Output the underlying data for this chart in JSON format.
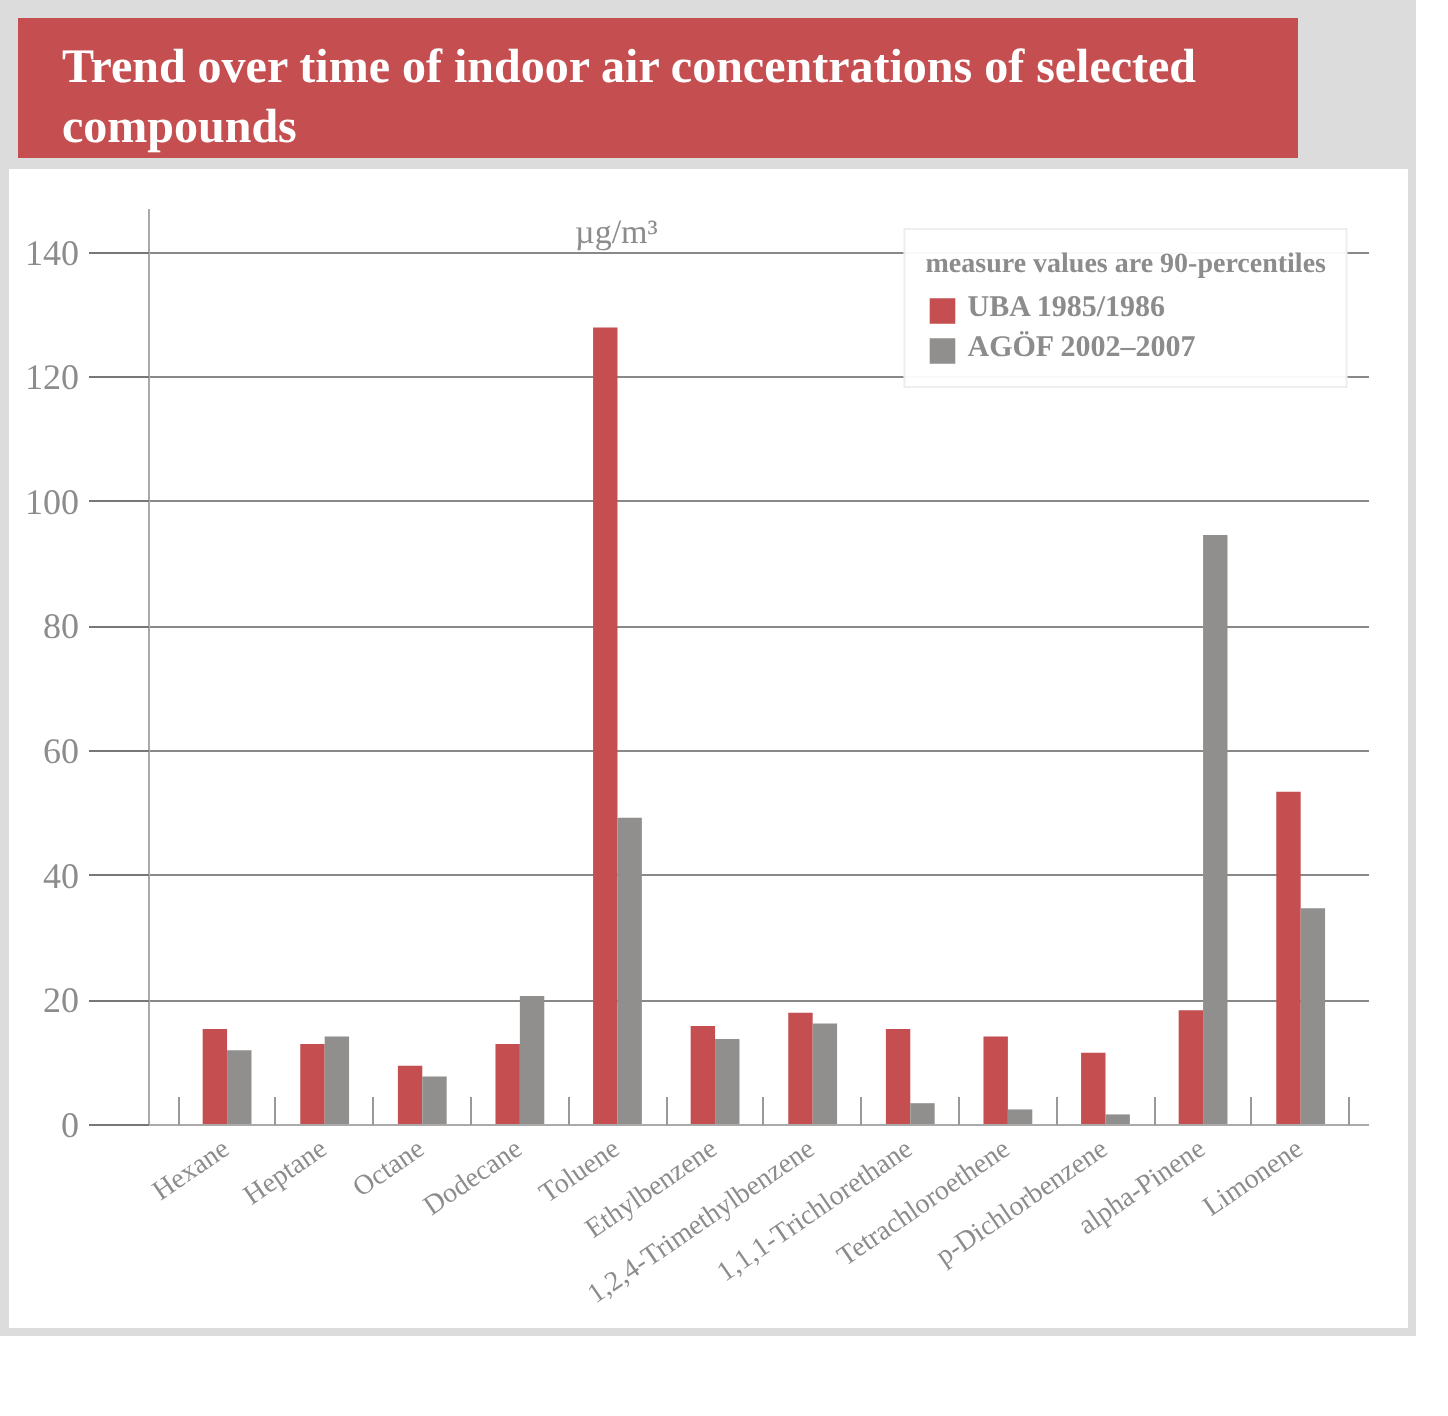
{
  "chart_data": {
    "type": "bar",
    "title": "Trend over time of indoor air concentrations of selected compounds",
    "ylabel": "µg/m³",
    "legend_title": "measure values are 90-percentiles",
    "categories": [
      "Hexane",
      "Heptane",
      "Octane",
      "Dodecane",
      "Toluene",
      "Ethylbenzene",
      "1,2,4-Trimethylbenzene",
      "1,1,1-Trichlorethane",
      "Tetrachloroethene",
      "p-Dichlorbenzene",
      "alpha-Pinene",
      "Limonene"
    ],
    "series": [
      {
        "name": "UBA 1985/1986",
        "color": "#c44e50",
        "values": [
          15.4,
          13.0,
          9.5,
          13.0,
          128,
          15.9,
          18.0,
          15.4,
          14.2,
          11.6,
          18.4,
          53.5
        ]
      },
      {
        "name": "AGÖF 2002–2007",
        "color": "#918f8d",
        "values": [
          12.0,
          14.2,
          7.8,
          20.7,
          49.3,
          13.8,
          16.3,
          3.5,
          2.5,
          1.7,
          94.7,
          34.8
        ]
      }
    ],
    "ylim": [
      0,
      147
    ],
    "yticks": [
      0,
      20,
      40,
      60,
      80,
      100,
      120,
      140
    ],
    "grid": "y",
    "legend": "top right"
  }
}
